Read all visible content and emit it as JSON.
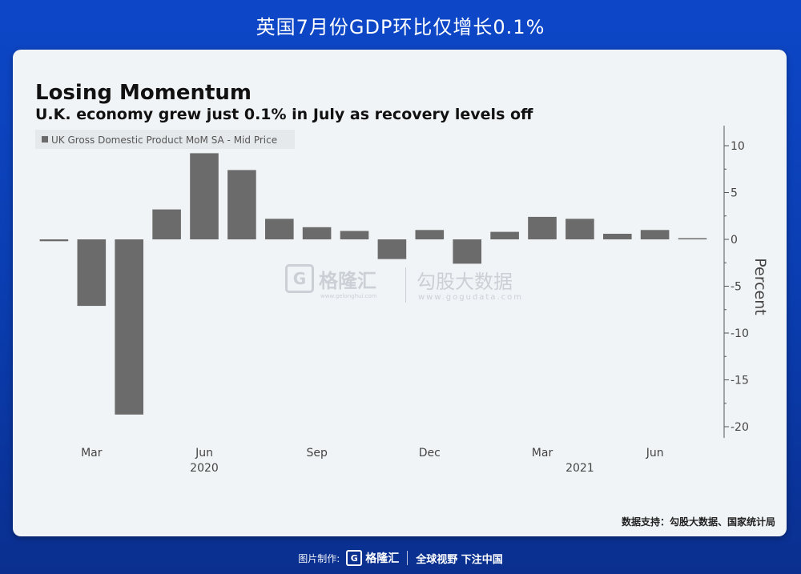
{
  "header": {
    "banner_title": "英国7月份GDP环比仅增长0.1%"
  },
  "chart_data": {
    "type": "bar",
    "title": "Losing Momentum",
    "subtitle": "U.K. economy grew just 0.1% in July as recovery levels off",
    "legend": {
      "label": "UK Gross Domestic Product MoM SA - Mid Price",
      "placement": "top-left",
      "color": "#6b6b6b"
    },
    "ylabel": "Percent",
    "ylim": [
      -21,
      12
    ],
    "yticks": [
      10,
      5,
      0,
      -5,
      -10,
      -15,
      -20
    ],
    "ytick_labels": [
      "10",
      "5",
      "0",
      "-5",
      "-10",
      "-15",
      "-20"
    ],
    "grid": false,
    "axis_position": "right",
    "categories": [
      "2020-02",
      "2020-03",
      "2020-04",
      "2020-05",
      "2020-06",
      "2020-07",
      "2020-08",
      "2020-09",
      "2020-10",
      "2020-11",
      "2020-12",
      "2021-01",
      "2021-02",
      "2021-03",
      "2021-04",
      "2021-05",
      "2021-06",
      "2021-07"
    ],
    "values": [
      -0.2,
      -7.1,
      -18.7,
      3.2,
      9.2,
      7.4,
      2.2,
      1.3,
      0.9,
      -2.1,
      1.0,
      -2.6,
      0.8,
      2.4,
      2.2,
      0.6,
      1.0,
      0.1
    ],
    "x_tick_labels": [
      {
        "label": "Mar",
        "category": "2020-03"
      },
      {
        "label": "Jun",
        "category": "2020-06"
      },
      {
        "label": "Sep",
        "category": "2020-09"
      },
      {
        "label": "Dec",
        "category": "2020-12"
      },
      {
        "label": "Mar",
        "category": "2021-03"
      },
      {
        "label": "Jun",
        "category": "2021-06"
      }
    ],
    "year_labels": [
      {
        "label": "2020",
        "category": "2020-06"
      },
      {
        "label": "2021",
        "category": "2021-04"
      }
    ],
    "bar_color": "#6b6b6b"
  },
  "watermark": {
    "brand": "格隆汇",
    "brand_url": "www.gelonghui.com",
    "data_brand": "勾股大数据",
    "data_url": "www.gogudata.com"
  },
  "source_note": "数据支持：勾股大数据、国家统计局",
  "footer": {
    "made_by": "图片制作:",
    "logo_letter": "G",
    "brand": "格隆汇",
    "slogan": "全球视野 下注中国"
  }
}
